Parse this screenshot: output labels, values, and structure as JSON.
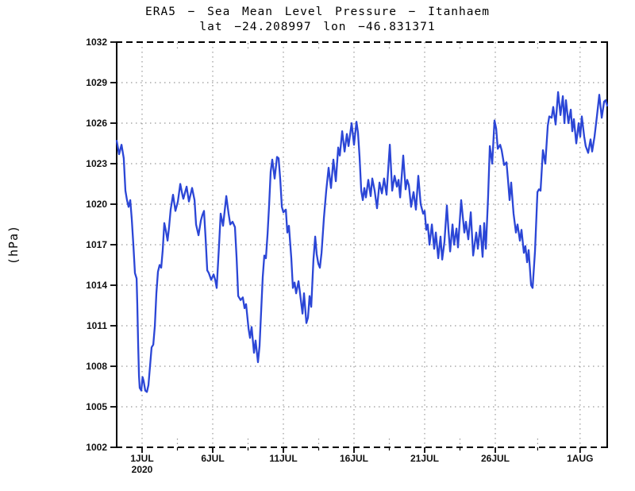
{
  "page": {
    "background": "#ffffff"
  },
  "chart_data": {
    "type": "line",
    "title": "ERA5 − Sea Mean Level Pressure − Itanhaem",
    "subtitle": "lat −24.208997 lon −46.831371",
    "ylabel": "(hPa)",
    "ylim": [
      1002,
      1032
    ],
    "yticks": [
      1032,
      1029,
      1026,
      1023,
      1020,
      1017,
      1014,
      1011,
      1008,
      1005,
      1002
    ],
    "x_domain_days": [
      -1.8,
      32.92
    ],
    "xticks": [
      {
        "day": 0,
        "label": "1JUL",
        "sublabel": "2020"
      },
      {
        "day": 5,
        "label": "6JUL",
        "sublabel": ""
      },
      {
        "day": 10,
        "label": "11JUL",
        "sublabel": ""
      },
      {
        "day": 15,
        "label": "16JUL",
        "sublabel": ""
      },
      {
        "day": 20,
        "label": "21JUL",
        "sublabel": ""
      },
      {
        "day": 25,
        "label": "26JUL",
        "sublabel": ""
      },
      {
        "day": 31,
        "label": "1AUG",
        "sublabel": ""
      }
    ],
    "xminor_days": [
      2.5,
      7.5,
      12.5,
      17.5,
      22.5,
      28
    ],
    "grid": "dotted",
    "legend": "none",
    "line_color": "#2b46d6",
    "grid_color": "#999999",
    "frame_color": "#000000",
    "series": [
      {
        "name": "sea-level-pressure-hpa",
        "points": [
          [
            -1.8,
            1024.7
          ],
          [
            -1.63,
            1023.7
          ],
          [
            -1.46,
            1024.4
          ],
          [
            -1.3,
            1023.4
          ],
          [
            -1.18,
            1021.0
          ],
          [
            -1.07,
            1020.3
          ],
          [
            -0.96,
            1019.8
          ],
          [
            -0.84,
            1020.3
          ],
          [
            -0.73,
            1018.9
          ],
          [
            -0.62,
            1017.0
          ],
          [
            -0.51,
            1014.9
          ],
          [
            -0.39,
            1014.5
          ],
          [
            -0.34,
            1012.5
          ],
          [
            -0.28,
            1009.5
          ],
          [
            -0.22,
            1007.3
          ],
          [
            -0.17,
            1006.4
          ],
          [
            -0.06,
            1006.2
          ],
          [
            0.03,
            1007.2
          ],
          [
            0.11,
            1006.9
          ],
          [
            0.22,
            1006.2
          ],
          [
            0.34,
            1006.1
          ],
          [
            0.45,
            1006.6
          ],
          [
            0.56,
            1008.0
          ],
          [
            0.67,
            1009.4
          ],
          [
            0.79,
            1009.6
          ],
          [
            0.9,
            1011.0
          ],
          [
            1.01,
            1013.4
          ],
          [
            1.12,
            1015.0
          ],
          [
            1.24,
            1015.5
          ],
          [
            1.35,
            1015.3
          ],
          [
            1.46,
            1016.6
          ],
          [
            1.57,
            1018.6
          ],
          [
            1.69,
            1018.0
          ],
          [
            1.8,
            1017.3
          ],
          [
            1.91,
            1018.3
          ],
          [
            2.02,
            1019.6
          ],
          [
            2.19,
            1020.7
          ],
          [
            2.36,
            1019.5
          ],
          [
            2.53,
            1020.2
          ],
          [
            2.7,
            1021.5
          ],
          [
            2.87,
            1020.6
          ],
          [
            2.92,
            1020.4
          ],
          [
            3.15,
            1021.3
          ],
          [
            3.31,
            1020.2
          ],
          [
            3.54,
            1021.2
          ],
          [
            3.71,
            1020.3
          ],
          [
            3.82,
            1018.5
          ],
          [
            3.99,
            1017.7
          ],
          [
            4.16,
            1018.8
          ],
          [
            4.27,
            1019.2
          ],
          [
            4.38,
            1019.5
          ],
          [
            4.49,
            1017.5
          ],
          [
            4.61,
            1015.1
          ],
          [
            4.72,
            1014.9
          ],
          [
            4.89,
            1014.4
          ],
          [
            5.06,
            1014.8
          ],
          [
            5.17,
            1014.4
          ],
          [
            5.28,
            1013.8
          ],
          [
            5.45,
            1017.0
          ],
          [
            5.56,
            1019.3
          ],
          [
            5.73,
            1018.4
          ],
          [
            5.96,
            1020.6
          ],
          [
            6.12,
            1019.3
          ],
          [
            6.24,
            1018.5
          ],
          [
            6.4,
            1018.7
          ],
          [
            6.57,
            1018.3
          ],
          [
            6.69,
            1016.0
          ],
          [
            6.8,
            1013.2
          ],
          [
            6.97,
            1012.9
          ],
          [
            7.13,
            1013.1
          ],
          [
            7.25,
            1012.3
          ],
          [
            7.36,
            1012.6
          ],
          [
            7.53,
            1010.8
          ],
          [
            7.64,
            1010.1
          ],
          [
            7.75,
            1010.9
          ],
          [
            7.92,
            1009.0
          ],
          [
            8.03,
            1009.9
          ],
          [
            8.2,
            1008.3
          ],
          [
            8.31,
            1009.5
          ],
          [
            8.37,
            1010.8
          ],
          [
            8.54,
            1014.6
          ],
          [
            8.65,
            1016.2
          ],
          [
            8.76,
            1016.0
          ],
          [
            8.88,
            1017.8
          ],
          [
            8.99,
            1020.0
          ],
          [
            9.1,
            1022.4
          ],
          [
            9.21,
            1023.3
          ],
          [
            9.38,
            1021.9
          ],
          [
            9.55,
            1023.5
          ],
          [
            9.66,
            1023.4
          ],
          [
            9.78,
            1021.8
          ],
          [
            9.89,
            1019.8
          ],
          [
            10.0,
            1019.4
          ],
          [
            10.17,
            1019.6
          ],
          [
            10.28,
            1017.9
          ],
          [
            10.39,
            1018.4
          ],
          [
            10.56,
            1016.0
          ],
          [
            10.67,
            1013.8
          ],
          [
            10.79,
            1014.2
          ],
          [
            10.9,
            1013.4
          ],
          [
            11.07,
            1014.3
          ],
          [
            11.18,
            1013.4
          ],
          [
            11.35,
            1011.9
          ],
          [
            11.46,
            1013.4
          ],
          [
            11.63,
            1011.2
          ],
          [
            11.74,
            1011.6
          ],
          [
            11.85,
            1013.2
          ],
          [
            11.97,
            1012.4
          ],
          [
            12.13,
            1015.9
          ],
          [
            12.25,
            1017.6
          ],
          [
            12.36,
            1016.3
          ],
          [
            12.47,
            1015.6
          ],
          [
            12.58,
            1015.3
          ],
          [
            12.7,
            1016.4
          ],
          [
            12.87,
            1019.0
          ],
          [
            13.03,
            1021.0
          ],
          [
            13.2,
            1022.7
          ],
          [
            13.37,
            1021.2
          ],
          [
            13.54,
            1023.3
          ],
          [
            13.71,
            1021.7
          ],
          [
            13.88,
            1024.2
          ],
          [
            13.99,
            1023.6
          ],
          [
            14.16,
            1025.4
          ],
          [
            14.33,
            1023.9
          ],
          [
            14.49,
            1025.2
          ],
          [
            14.61,
            1024.3
          ],
          [
            14.83,
            1026.0
          ],
          [
            15.0,
            1024.4
          ],
          [
            15.17,
            1026.1
          ],
          [
            15.28,
            1025.3
          ],
          [
            15.39,
            1023.5
          ],
          [
            15.51,
            1021.0
          ],
          [
            15.62,
            1020.3
          ],
          [
            15.73,
            1021.2
          ],
          [
            15.84,
            1020.5
          ],
          [
            16.01,
            1021.8
          ],
          [
            16.18,
            1020.6
          ],
          [
            16.29,
            1021.9
          ],
          [
            16.46,
            1021.0
          ],
          [
            16.63,
            1019.7
          ],
          [
            16.8,
            1021.6
          ],
          [
            16.97,
            1020.8
          ],
          [
            17.13,
            1021.9
          ],
          [
            17.3,
            1020.7
          ],
          [
            17.53,
            1024.4
          ],
          [
            17.7,
            1021.0
          ],
          [
            17.87,
            1022.1
          ],
          [
            18.03,
            1021.3
          ],
          [
            18.15,
            1021.8
          ],
          [
            18.26,
            1020.5
          ],
          [
            18.48,
            1023.6
          ],
          [
            18.65,
            1021.1
          ],
          [
            18.76,
            1021.8
          ],
          [
            18.88,
            1021.4
          ],
          [
            19.04,
            1019.8
          ],
          [
            19.21,
            1020.9
          ],
          [
            19.38,
            1019.6
          ],
          [
            19.55,
            1022.1
          ],
          [
            19.72,
            1020.0
          ],
          [
            19.89,
            1019.3
          ],
          [
            20.0,
            1019.5
          ],
          [
            20.11,
            1018.1
          ],
          [
            20.22,
            1018.5
          ],
          [
            20.34,
            1017.0
          ],
          [
            20.51,
            1018.5
          ],
          [
            20.67,
            1016.7
          ],
          [
            20.79,
            1017.9
          ],
          [
            20.96,
            1016.0
          ],
          [
            21.12,
            1017.6
          ],
          [
            21.24,
            1015.9
          ],
          [
            21.4,
            1017.2
          ],
          [
            21.57,
            1019.9
          ],
          [
            21.69,
            1018.0
          ],
          [
            21.8,
            1016.5
          ],
          [
            21.97,
            1018.5
          ],
          [
            22.08,
            1017.0
          ],
          [
            22.25,
            1018.2
          ],
          [
            22.36,
            1016.8
          ],
          [
            22.58,
            1020.3
          ],
          [
            22.81,
            1017.9
          ],
          [
            22.92,
            1018.7
          ],
          [
            23.09,
            1017.4
          ],
          [
            23.26,
            1019.4
          ],
          [
            23.43,
            1016.2
          ],
          [
            23.65,
            1017.9
          ],
          [
            23.76,
            1016.7
          ],
          [
            23.93,
            1018.4
          ],
          [
            24.1,
            1016.1
          ],
          [
            24.21,
            1018.6
          ],
          [
            24.33,
            1016.7
          ],
          [
            24.49,
            1020.5
          ],
          [
            24.61,
            1024.3
          ],
          [
            24.78,
            1023.0
          ],
          [
            24.94,
            1026.2
          ],
          [
            25.06,
            1025.6
          ],
          [
            25.17,
            1024.1
          ],
          [
            25.34,
            1024.4
          ],
          [
            25.45,
            1024.0
          ],
          [
            25.62,
            1022.9
          ],
          [
            25.79,
            1023.1
          ],
          [
            25.9,
            1021.8
          ],
          [
            26.01,
            1020.3
          ],
          [
            26.12,
            1021.6
          ],
          [
            26.29,
            1019.3
          ],
          [
            26.46,
            1017.9
          ],
          [
            26.57,
            1018.5
          ],
          [
            26.74,
            1017.3
          ],
          [
            26.85,
            1018.1
          ],
          [
            27.02,
            1016.4
          ],
          [
            27.13,
            1016.9
          ],
          [
            27.25,
            1015.7
          ],
          [
            27.36,
            1016.6
          ],
          [
            27.53,
            1014.0
          ],
          [
            27.64,
            1013.8
          ],
          [
            27.81,
            1016.5
          ],
          [
            27.98,
            1020.9
          ],
          [
            28.09,
            1021.1
          ],
          [
            28.2,
            1021.0
          ],
          [
            28.37,
            1024.0
          ],
          [
            28.54,
            1023.0
          ],
          [
            28.71,
            1025.8
          ],
          [
            28.82,
            1026.5
          ],
          [
            28.99,
            1026.4
          ],
          [
            29.1,
            1027.2
          ],
          [
            29.27,
            1025.9
          ],
          [
            29.44,
            1028.3
          ],
          [
            29.61,
            1026.6
          ],
          [
            29.78,
            1028.0
          ],
          [
            29.89,
            1026.0
          ],
          [
            30.0,
            1027.7
          ],
          [
            30.17,
            1026.0
          ],
          [
            30.34,
            1027.0
          ],
          [
            30.45,
            1025.4
          ],
          [
            30.56,
            1026.3
          ],
          [
            30.73,
            1024.5
          ],
          [
            30.9,
            1026.0
          ],
          [
            31.01,
            1025.0
          ],
          [
            31.12,
            1026.5
          ],
          [
            31.29,
            1025.0
          ],
          [
            31.4,
            1024.3
          ],
          [
            31.57,
            1023.8
          ],
          [
            31.74,
            1024.8
          ],
          [
            31.85,
            1023.9
          ],
          [
            32.02,
            1025.0
          ],
          [
            32.19,
            1026.5
          ],
          [
            32.36,
            1028.1
          ],
          [
            32.53,
            1026.4
          ],
          [
            32.7,
            1027.6
          ],
          [
            32.81,
            1027.7
          ],
          [
            32.92,
            1027.3
          ]
        ]
      }
    ]
  }
}
